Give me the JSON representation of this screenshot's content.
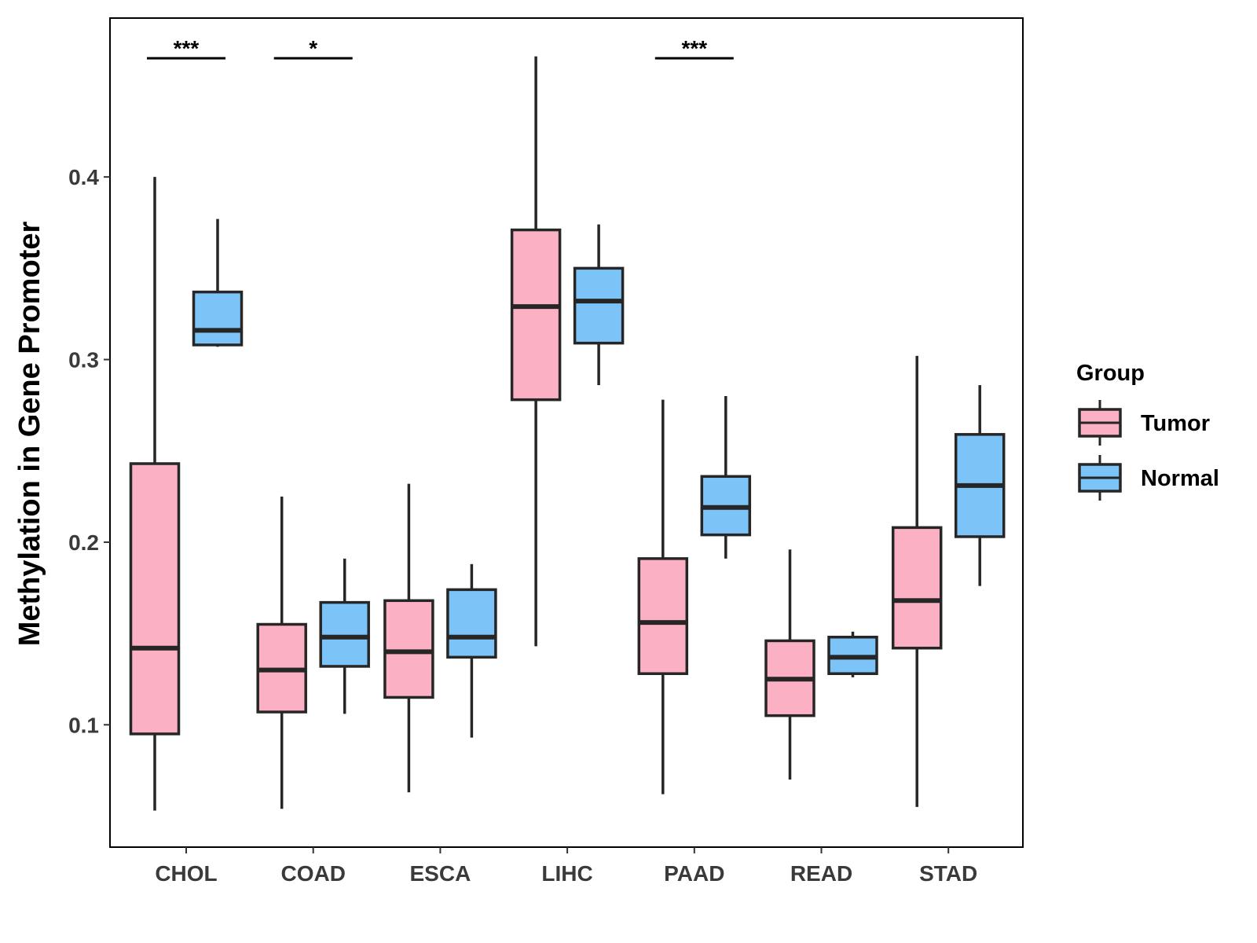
{
  "chart_data": {
    "type": "boxplot",
    "title": "",
    "xlabel": "",
    "ylabel": "Methylation in Gene Promoter",
    "ylim": [
      0.033,
      0.487
    ],
    "yticks": [
      {
        "value": 0.1,
        "label": "0.1"
      },
      {
        "value": 0.2,
        "label": "0.2"
      },
      {
        "value": 0.3,
        "label": "0.3"
      },
      {
        "value": 0.4,
        "label": "0.4"
      }
    ],
    "categories": [
      "CHOL",
      "COAD",
      "ESCA",
      "LIHC",
      "PAAD",
      "READ",
      "STAD"
    ],
    "legend": {
      "title": "Group",
      "position": "right",
      "entries": [
        {
          "name": "Tumor",
          "color": "#fbb0c3"
        },
        {
          "name": "Normal",
          "color": "#7cc3f7"
        }
      ]
    },
    "series": [
      {
        "name": "Tumor",
        "color": "#fbb0c3",
        "boxes": [
          {
            "category": "CHOL",
            "min": 0.053,
            "q1": 0.095,
            "median": 0.142,
            "q3": 0.243,
            "max": 0.4
          },
          {
            "category": "COAD",
            "min": 0.054,
            "q1": 0.107,
            "median": 0.13,
            "q3": 0.155,
            "max": 0.225
          },
          {
            "category": "ESCA",
            "min": 0.063,
            "q1": 0.115,
            "median": 0.14,
            "q3": 0.168,
            "max": 0.232
          },
          {
            "category": "LIHC",
            "min": 0.143,
            "q1": 0.278,
            "median": 0.329,
            "q3": 0.371,
            "max": 0.466
          },
          {
            "category": "PAAD",
            "min": 0.062,
            "q1": 0.128,
            "median": 0.156,
            "q3": 0.191,
            "max": 0.278
          },
          {
            "category": "READ",
            "min": 0.07,
            "q1": 0.105,
            "median": 0.125,
            "q3": 0.146,
            "max": 0.196
          },
          {
            "category": "STAD",
            "min": 0.055,
            "q1": 0.142,
            "median": 0.168,
            "q3": 0.208,
            "max": 0.302
          }
        ]
      },
      {
        "name": "Normal",
        "color": "#7cc3f7",
        "boxes": [
          {
            "category": "CHOL",
            "min": 0.307,
            "q1": 0.308,
            "median": 0.316,
            "q3": 0.337,
            "max": 0.377
          },
          {
            "category": "COAD",
            "min": 0.106,
            "q1": 0.132,
            "median": 0.148,
            "q3": 0.167,
            "max": 0.191
          },
          {
            "category": "ESCA",
            "min": 0.093,
            "q1": 0.137,
            "median": 0.148,
            "q3": 0.174,
            "max": 0.188
          },
          {
            "category": "LIHC",
            "min": 0.286,
            "q1": 0.309,
            "median": 0.332,
            "q3": 0.35,
            "max": 0.374
          },
          {
            "category": "PAAD",
            "min": 0.191,
            "q1": 0.204,
            "median": 0.219,
            "q3": 0.236,
            "max": 0.28
          },
          {
            "category": "READ",
            "min": 0.126,
            "q1": 0.128,
            "median": 0.137,
            "q3": 0.148,
            "max": 0.151
          },
          {
            "category": "STAD",
            "min": 0.176,
            "q1": 0.203,
            "median": 0.231,
            "q3": 0.259,
            "max": 0.286
          }
        ]
      }
    ],
    "annotations": [
      {
        "category": "CHOL",
        "label": "***",
        "y": 0.465
      },
      {
        "category": "COAD",
        "label": "*",
        "y": 0.465
      },
      {
        "category": "PAAD",
        "label": "***",
        "y": 0.465
      }
    ]
  }
}
